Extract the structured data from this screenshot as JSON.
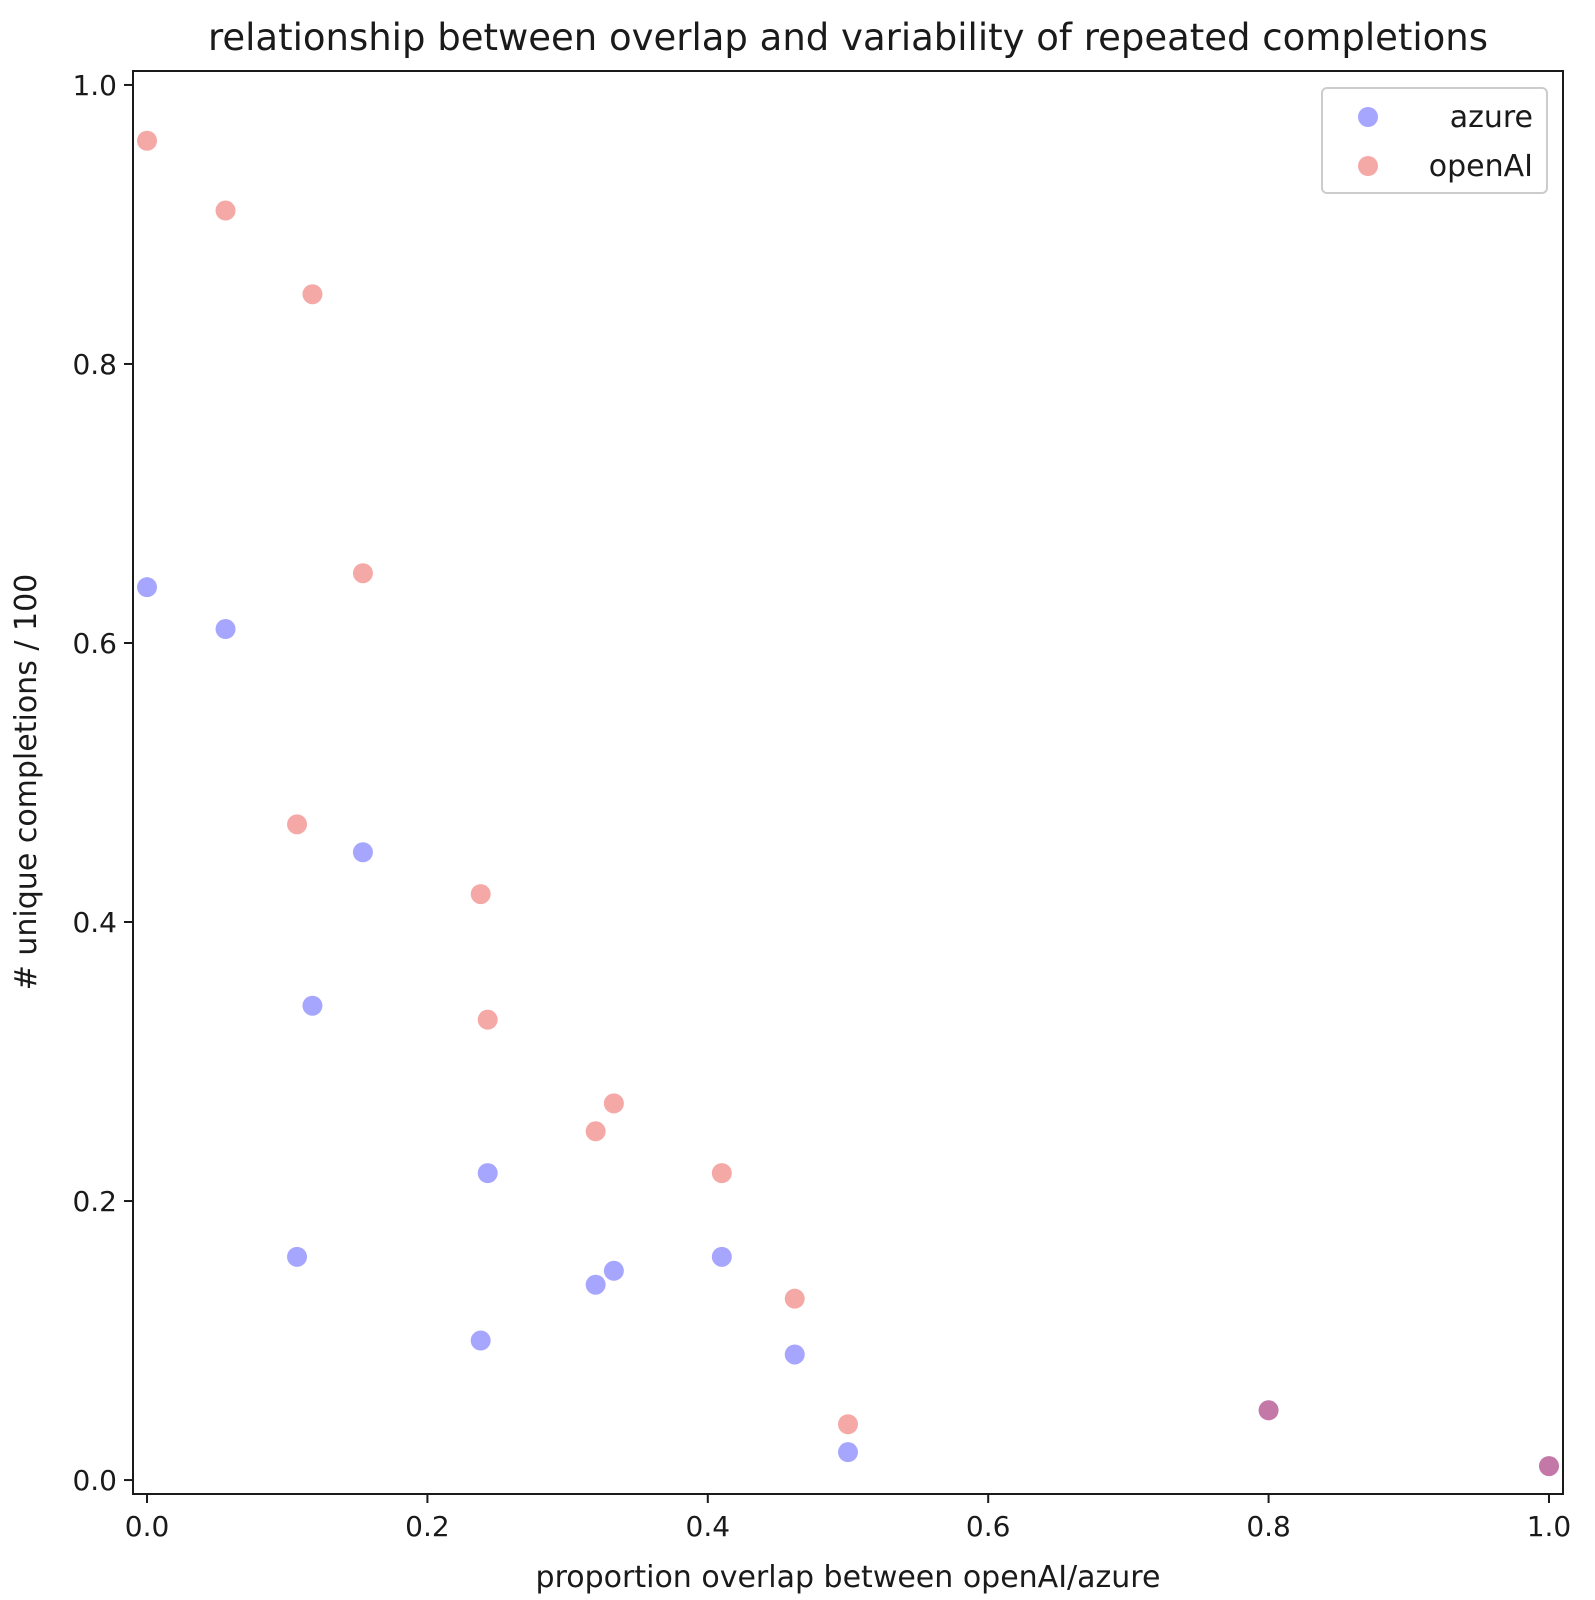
{
  "chart_data": {
    "type": "scatter",
    "title": "relationship between overlap and variability of repeated completions",
    "xlabel": "proportion overlap between openAI/azure",
    "ylabel": "# unique completions / 100",
    "xlim": [
      -0.01,
      1.01
    ],
    "ylim": [
      -0.01,
      1.01
    ],
    "xticks": [
      0.0,
      0.2,
      0.4,
      0.6,
      0.8,
      1.0
    ],
    "xtick_labels": [
      "0.0",
      "0.2",
      "0.4",
      "0.6",
      "0.8",
      "1.0"
    ],
    "yticks": [
      0.0,
      0.2,
      0.4,
      0.6,
      0.8,
      1.0
    ],
    "ytick_labels": [
      "0.0",
      "0.2",
      "0.4",
      "0.6",
      "0.8",
      "1.0"
    ],
    "grid": false,
    "legend_position": "top-right",
    "series": [
      {
        "name": "azure",
        "color": "#0000ff",
        "alpha": 0.35,
        "points": [
          {
            "x": 0.0,
            "y": 0.64
          },
          {
            "x": 0.056,
            "y": 0.61
          },
          {
            "x": 0.107,
            "y": 0.16
          },
          {
            "x": 0.118,
            "y": 0.34
          },
          {
            "x": 0.154,
            "y": 0.45
          },
          {
            "x": 0.238,
            "y": 0.1
          },
          {
            "x": 0.243,
            "y": 0.22
          },
          {
            "x": 0.32,
            "y": 0.14
          },
          {
            "x": 0.333,
            "y": 0.15
          },
          {
            "x": 0.41,
            "y": 0.16
          },
          {
            "x": 0.462,
            "y": 0.09
          },
          {
            "x": 0.5,
            "y": 0.02
          },
          {
            "x": 0.8,
            "y": 0.05
          },
          {
            "x": 1.0,
            "y": 0.01
          }
        ]
      },
      {
        "name": "openAI",
        "color": "#e8413c",
        "alpha": 0.45,
        "points": [
          {
            "x": 0.0,
            "y": 0.96
          },
          {
            "x": 0.056,
            "y": 0.91
          },
          {
            "x": 0.107,
            "y": 0.47
          },
          {
            "x": 0.118,
            "y": 0.85
          },
          {
            "x": 0.154,
            "y": 0.65
          },
          {
            "x": 0.238,
            "y": 0.42
          },
          {
            "x": 0.243,
            "y": 0.33
          },
          {
            "x": 0.32,
            "y": 0.25
          },
          {
            "x": 0.333,
            "y": 0.27
          },
          {
            "x": 0.41,
            "y": 0.22
          },
          {
            "x": 0.462,
            "y": 0.13
          },
          {
            "x": 0.5,
            "y": 0.04
          },
          {
            "x": 0.8,
            "y": 0.05
          },
          {
            "x": 1.0,
            "y": 0.01
          }
        ]
      }
    ]
  }
}
